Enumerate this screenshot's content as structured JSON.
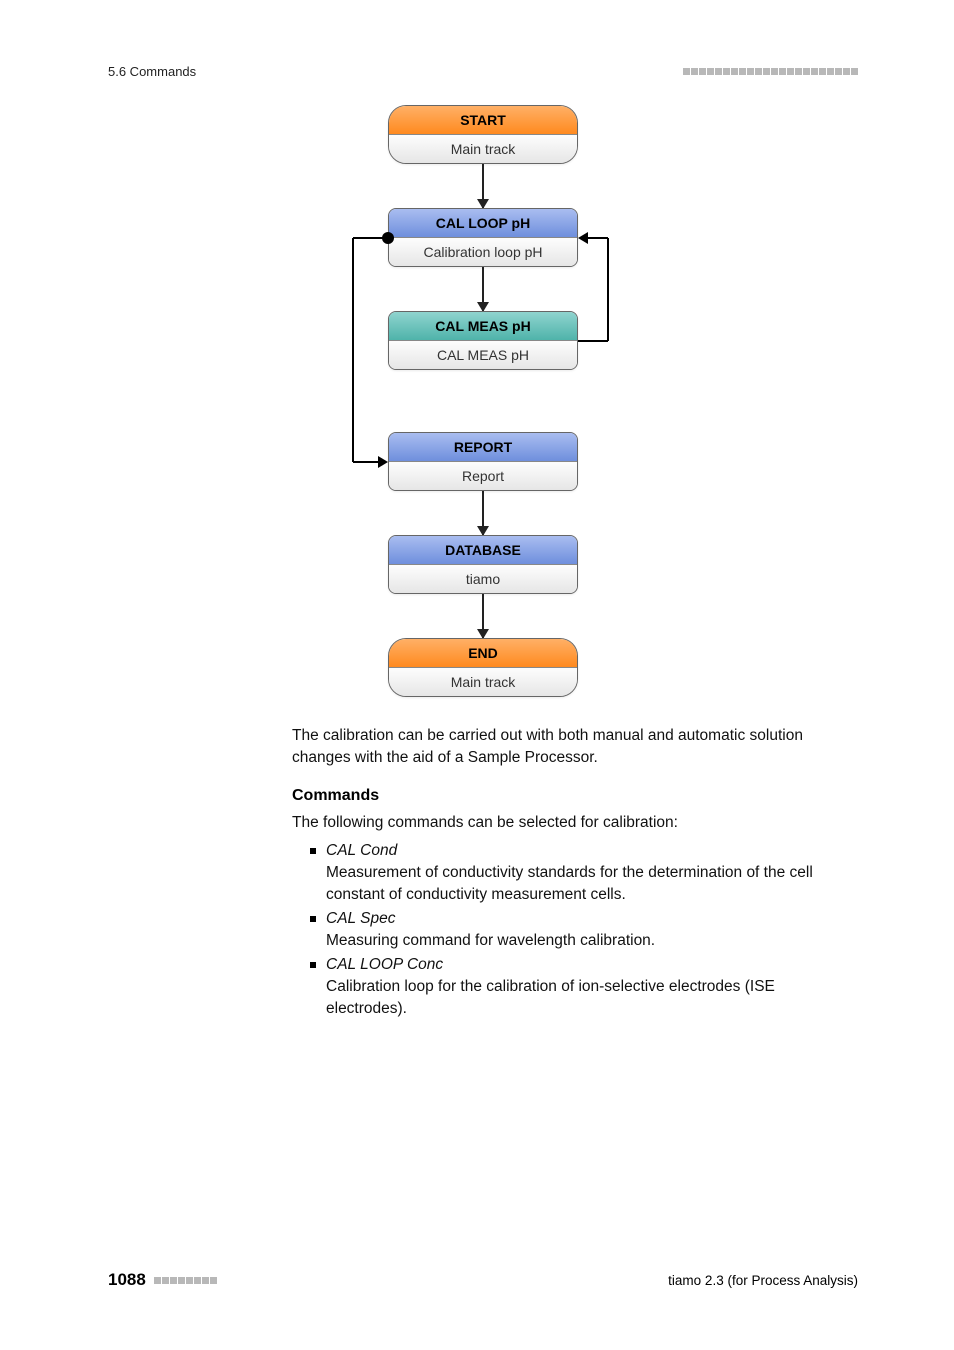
{
  "header": {
    "section": "5.6 Commands",
    "decor_square_count": 22,
    "decor_color": "#b8b8b8"
  },
  "flowchart": {
    "nodes": [
      {
        "id": "start",
        "head": "START",
        "sub": "Main track",
        "style": "orange",
        "shape": "rounded"
      },
      {
        "id": "calloop",
        "head": "CAL LOOP pH",
        "sub": "Calibration loop pH",
        "style": "blue",
        "shape": "rect"
      },
      {
        "id": "calmeas",
        "head": "CAL MEAS pH",
        "sub": "CAL MEAS pH",
        "style": "teal",
        "shape": "rect"
      },
      {
        "id": "report",
        "head": "REPORT",
        "sub": "Report",
        "style": "blue",
        "shape": "rect"
      },
      {
        "id": "database",
        "head": "DATABASE",
        "sub": "tiamo",
        "style": "blue",
        "shape": "rect"
      },
      {
        "id": "end",
        "head": "END",
        "sub": "Main track",
        "style": "orange",
        "shape": "rounded"
      }
    ],
    "loop": {
      "from_after": "calmeas",
      "to": "calloop",
      "side": "right",
      "return_side": "left",
      "return_to": "report"
    }
  },
  "body": {
    "intro": "The calibration can be carried out with both manual and automatic solution changes with the aid of a Sample Processor.",
    "section_heading": "Commands",
    "lead": "The following commands can be selected for calibration:",
    "commands": [
      {
        "name": "CAL Cond",
        "desc": "Measurement of conductivity standards for the determination of the cell constant of conductivity measurement cells."
      },
      {
        "name": "CAL Spec",
        "desc": "Measuring command for wavelength calibration."
      },
      {
        "name": "CAL LOOP Conc",
        "desc": "Calibration loop for the calibration of ion-selective electrodes (ISE electrodes)."
      }
    ]
  },
  "footer": {
    "page": "1088",
    "decor_square_count": 8,
    "product": "tiamo 2.3 (for Process Analysis)"
  },
  "colors": {
    "orange_top": "#ffb066",
    "orange_bot": "#ff8a1f",
    "blue_top": "#a9bdf0",
    "blue_bot": "#6f8fdd",
    "teal_top": "#8fd4cf",
    "teal_bot": "#4fb3aa",
    "arrow": "#222222"
  }
}
